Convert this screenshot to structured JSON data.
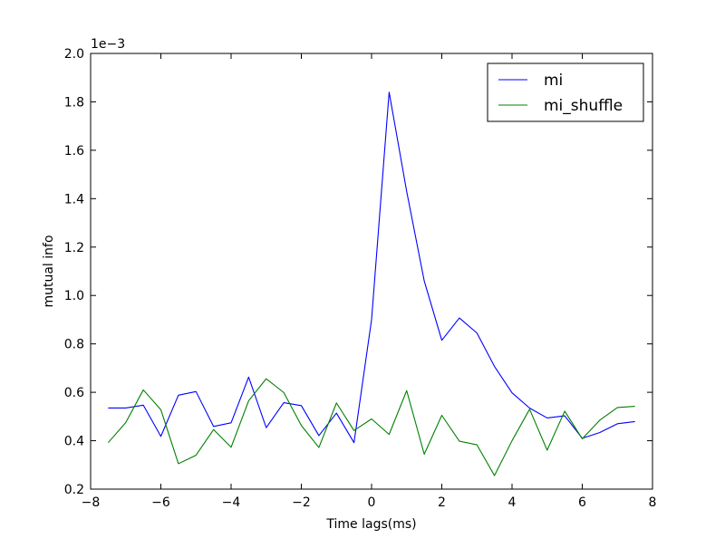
{
  "chart_data": {
    "type": "line",
    "title": "",
    "xlabel": "Time lags(ms)",
    "ylabel": "mutual info",
    "y_offset_label": "1e−3",
    "xlim": [
      -8,
      8
    ],
    "ylim": [
      0.2,
      2.0
    ],
    "x_ticks": [
      -8,
      -6,
      -4,
      -2,
      0,
      2,
      4,
      6,
      8
    ],
    "x_tick_labels": [
      "−8",
      "−6",
      "−4",
      "−2",
      "0",
      "2",
      "4",
      "6",
      "8"
    ],
    "y_ticks": [
      0.2,
      0.4,
      0.6,
      0.8,
      1.0,
      1.2,
      1.4,
      1.6,
      1.8,
      2.0
    ],
    "y_tick_labels": [
      "0.2",
      "0.4",
      "0.6",
      "0.8",
      "1.0",
      "1.2",
      "1.4",
      "1.6",
      "1.8",
      "2.0"
    ],
    "grid": false,
    "legend_position": "top-right",
    "x": [
      -7.5,
      -7.0,
      -6.5,
      -6.0,
      -5.5,
      -5.0,
      -4.5,
      -4.0,
      -3.5,
      -3.0,
      -2.5,
      -2.0,
      -1.5,
      -1.0,
      -0.5,
      0.0,
      0.5,
      1.0,
      1.5,
      2.0,
      2.5,
      3.0,
      3.5,
      4.0,
      4.5,
      5.0,
      5.5,
      6.0,
      6.5,
      7.0,
      7.5
    ],
    "series": [
      {
        "name": "mi",
        "color": "#0000ff",
        "values": [
          0.535,
          0.535,
          0.547,
          0.418,
          0.588,
          0.603,
          0.459,
          0.474,
          0.663,
          0.454,
          0.557,
          0.545,
          0.421,
          0.514,
          0.392,
          0.9,
          1.84,
          1.43,
          1.06,
          0.815,
          0.907,
          0.845,
          0.707,
          0.598,
          0.535,
          0.494,
          0.503,
          0.41,
          0.434,
          0.47,
          0.479
        ]
      },
      {
        "name": "mi_shuffle",
        "color": "#008000",
        "values": [
          0.392,
          0.475,
          0.61,
          0.528,
          0.305,
          0.34,
          0.446,
          0.373,
          0.565,
          0.656,
          0.599,
          0.463,
          0.372,
          0.556,
          0.442,
          0.49,
          0.426,
          0.607,
          0.344,
          0.505,
          0.398,
          0.383,
          0.256,
          0.4,
          0.53,
          0.361,
          0.522,
          0.408,
          0.485,
          0.537,
          0.542
        ]
      }
    ]
  }
}
